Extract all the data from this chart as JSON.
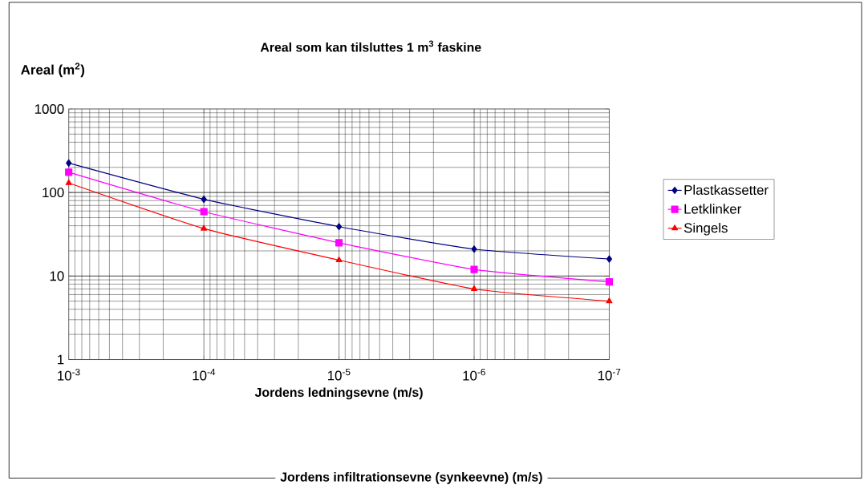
{
  "chart_data": {
    "type": "line",
    "title": "Areal som kan tilsluttes 1 m$^{3}$ faskine",
    "ylabel": "Areal (m$^{2}$)",
    "xlabel": "Jordens ledningsevne (m/s)",
    "annotations": [
      "Jordens infiltrationsevne (synkeevne) (m/s)"
    ],
    "x": [
      0.001,
      0.0001,
      1e-05,
      1e-06,
      1e-07
    ],
    "series": [
      {
        "name": "Plastkassetter",
        "color": "#000080",
        "marker": "diamond",
        "values": [
          225,
          83,
          39,
          21,
          16
        ]
      },
      {
        "name": "Letklinker",
        "color": "#ff00ff",
        "marker": "square",
        "values": [
          175,
          59,
          25,
          12,
          8.5
        ]
      },
      {
        "name": "Singels",
        "color": "#ff0000",
        "marker": "triangle",
        "values": [
          130,
          37,
          15.5,
          7,
          5
        ]
      }
    ],
    "log": "xy",
    "xlim": [
      0.001,
      1e-07
    ],
    "ylim": [
      1,
      1000
    ],
    "xticks": [
      {
        "value": 0.001,
        "label": "10$^{-3}$"
      },
      {
        "value": 0.0001,
        "label": "10$^{-4}$"
      },
      {
        "value": 1e-05,
        "label": "10$^{-5}$"
      },
      {
        "value": 1e-06,
        "label": "10$^{-6}$"
      },
      {
        "value": 1e-07,
        "label": "10$^{-7}$"
      }
    ],
    "yticks": [
      1,
      10,
      100,
      1000
    ],
    "grid": true,
    "legend": "right",
    "line_style": "solid"
  }
}
